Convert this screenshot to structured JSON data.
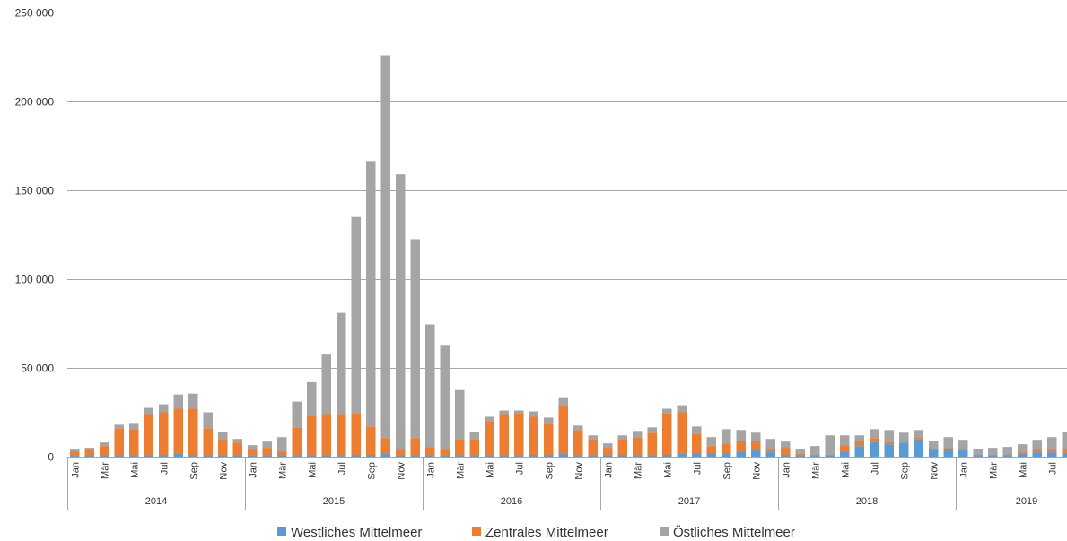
{
  "chart_data": {
    "type": "bar",
    "stacked": true,
    "title": "",
    "xlabel": "",
    "ylabel": "",
    "ylim": [
      0,
      250000
    ],
    "yticks": [
      0,
      50000,
      100000,
      150000,
      200000,
      250000
    ],
    "ytick_labels": [
      "0",
      "50 000",
      "100 000",
      "150 000",
      "200 000",
      "250 000"
    ],
    "grid": "horizontal",
    "legend_position": "bottom",
    "colors": {
      "Westliches Mittelmeer": "#5B9BD5",
      "Zentrales Mittelmeer": "#ED7D31",
      "Östliches Mittelmeer": "#A5A5A5",
      "grid": "#A6A6A6",
      "axis": "#A6A6A6"
    },
    "years": [
      {
        "label": "2014",
        "months": 12
      },
      {
        "label": "2015",
        "months": 12
      },
      {
        "label": "2016",
        "months": 12
      },
      {
        "label": "2017",
        "months": 12
      },
      {
        "label": "2018",
        "months": 12
      },
      {
        "label": "2019",
        "months": 8
      }
    ],
    "categories": [
      "Jan",
      "Feb",
      "Mär",
      "Apr",
      "Mai",
      "Jun",
      "Jul",
      "Aug",
      "Sep",
      "Okt",
      "Nov",
      "Dez",
      "Jan",
      "Feb",
      "Mär",
      "Apr",
      "Mai",
      "Jun",
      "Jul",
      "Aug",
      "Sep",
      "Okt",
      "Nov",
      "Dez",
      "Jan",
      "Feb",
      "Mär",
      "Apr",
      "Mai",
      "Jun",
      "Jul",
      "Aug",
      "Sep",
      "Okt",
      "Nov",
      "Dez",
      "Jan",
      "Feb",
      "Mär",
      "Apr",
      "Mai",
      "Jun",
      "Jul",
      "Aug",
      "Sep",
      "Okt",
      "Nov",
      "Dez",
      "Jan",
      "Feb",
      "Mär",
      "Apr",
      "Mai",
      "Jun",
      "Jul",
      "Aug",
      "Sep",
      "Okt",
      "Nov",
      "Dez",
      "Jan",
      "Feb",
      "Mär",
      "Apr",
      "Mai",
      "Jun",
      "Jul",
      "Aug"
    ],
    "category_labels_visible": [
      "Jan",
      "",
      "Mär",
      "",
      "Mai",
      "",
      "Jul",
      "",
      "Sep",
      "",
      "Nov",
      "",
      "Jan",
      "",
      "Mär",
      "",
      "Mai",
      "",
      "Jul",
      "",
      "Sep",
      "",
      "Nov",
      "",
      "Jan",
      "",
      "Mär",
      "",
      "Mai",
      "",
      "Jul",
      "",
      "Sep",
      "",
      "Nov",
      "",
      "Jan",
      "",
      "Mär",
      "",
      "Mai",
      "",
      "Jul",
      "",
      "Sep",
      "",
      "Nov",
      "",
      "Jan",
      "",
      "Mär",
      "",
      "Mai",
      "",
      "Jul",
      "",
      "Sep",
      "",
      "Nov",
      "",
      "Jan",
      "",
      "Mär",
      "",
      "Mai",
      "",
      "Jul",
      ""
    ],
    "series": [
      {
        "name": "Westliches Mittelmeer",
        "values": [
          500,
          500,
          500,
          500,
          500,
          500,
          1000,
          1500,
          1000,
          500,
          500,
          500,
          500,
          500,
          500,
          500,
          500,
          500,
          500,
          1000,
          1000,
          1500,
          500,
          500,
          500,
          500,
          500,
          500,
          500,
          500,
          500,
          1000,
          1000,
          1500,
          500,
          500,
          500,
          1000,
          500,
          500,
          1000,
          1500,
          2000,
          2000,
          2000,
          3000,
          3500,
          2500,
          1000,
          500,
          500,
          500,
          3000,
          6000,
          8500,
          7000,
          8000,
          10000,
          4000,
          4500,
          3500,
          500,
          500,
          500,
          1500,
          2500,
          2500,
          2000
        ]
      },
      {
        "name": "Zentrales Mittelmeer",
        "values": [
          2500,
          3500,
          5500,
          15500,
          15000,
          23000,
          24000,
          25500,
          26000,
          15500,
          9500,
          7500,
          3500,
          4500,
          2500,
          16000,
          22500,
          23000,
          23000,
          23000,
          16000,
          9000,
          3500,
          10000,
          5000,
          3500,
          9500,
          9500,
          19500,
          23000,
          23500,
          21500,
          17500,
          27500,
          14500,
          9500,
          4500,
          9000,
          10500,
          13000,
          23000,
          23500,
          11000,
          4000,
          5500,
          6000,
          5500,
          2000,
          4000,
          1000,
          500,
          500,
          3500,
          3000,
          2000,
          1500,
          500,
          1000,
          500,
          500,
          500,
          500,
          500,
          500,
          1000,
          1500,
          1500,
          2500
        ]
      },
      {
        "name": "Östliches Mittelmeer",
        "values": [
          1000,
          1000,
          2000,
          2000,
          3000,
          4000,
          4500,
          8000,
          8500,
          9000,
          4000,
          2000,
          2500,
          3500,
          8000,
          14500,
          19000,
          34000,
          57500,
          111000,
          149000,
          215500,
          155000,
          112000,
          69000,
          58500,
          27500,
          4000,
          2500,
          2500,
          2000,
          3000,
          3500,
          4000,
          2500,
          2000,
          2500,
          2000,
          3500,
          3000,
          3000,
          4000,
          4000,
          5000,
          8000,
          6000,
          4500,
          5500,
          3500,
          2500,
          5000,
          11000,
          5500,
          3000,
          5000,
          6500,
          5000,
          4000,
          4500,
          6000,
          5500,
          3500,
          4000,
          4500,
          4500,
          5500,
          7000,
          9500
        ]
      }
    ]
  }
}
